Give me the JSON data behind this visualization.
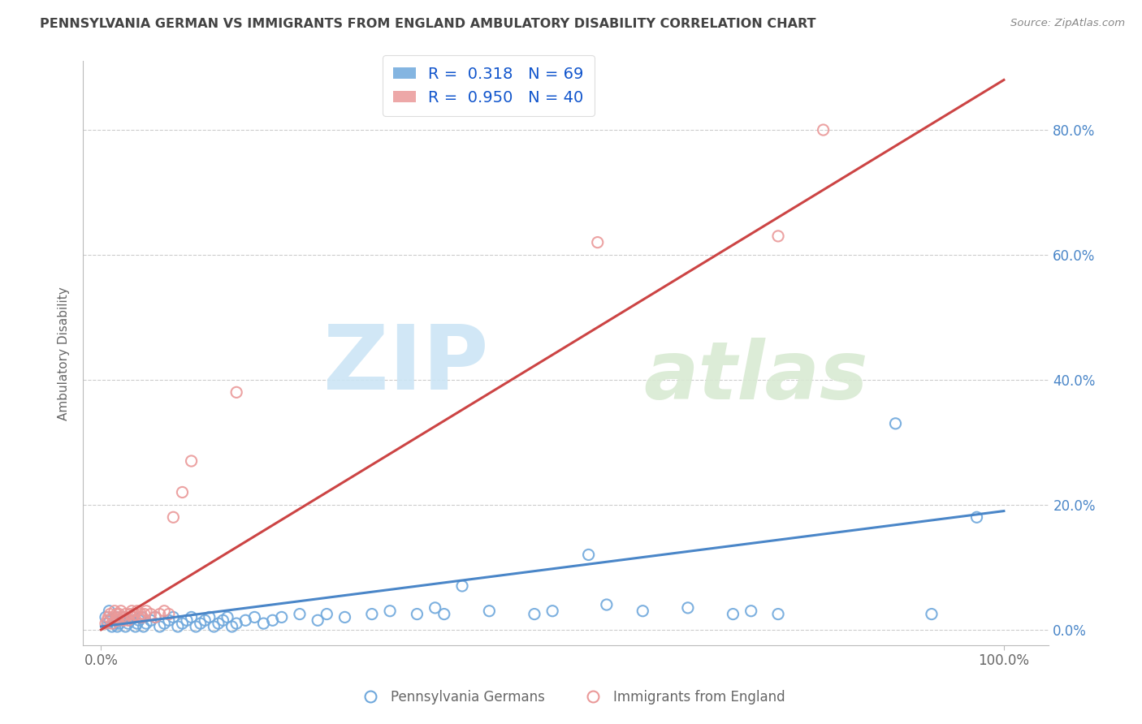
{
  "title": "PENNSYLVANIA GERMAN VS IMMIGRANTS FROM ENGLAND AMBULATORY DISABILITY CORRELATION CHART",
  "source": "Source: ZipAtlas.com",
  "ylabel": "Ambulatory Disability",
  "legend_label_blue": "Pennsylvania Germans",
  "legend_label_pink": "Immigrants from England",
  "R_blue": "0.318",
  "N_blue": "69",
  "R_pink": "0.950",
  "N_pink": "40",
  "blue_color": "#6fa8dc",
  "pink_color": "#ea9999",
  "blue_line_color": "#4a86c8",
  "pink_line_color": "#cc4444",
  "watermark_zip_color": "#cce5f5",
  "watermark_atlas_color": "#d9ead3",
  "background_color": "#ffffff",
  "grid_color": "#cccccc",
  "title_color": "#434343",
  "axis_label_color": "#666666",
  "right_tick_color": "#4a86c8",
  "legend_text_color": "#1155cc",
  "ytick_positions": [
    0.0,
    0.2,
    0.4,
    0.6,
    0.8
  ],
  "ytick_labels_right": [
    "0.0%",
    "20.0%",
    "40.0%",
    "60.0%",
    "80.0%"
  ],
  "blue_scatter": [
    [
      0.005,
      0.02
    ],
    [
      0.007,
      0.01
    ],
    [
      0.009,
      0.03
    ],
    [
      0.01,
      0.015
    ],
    [
      0.012,
      0.005
    ],
    [
      0.015,
      0.01
    ],
    [
      0.017,
      0.02
    ],
    [
      0.018,
      0.005
    ],
    [
      0.02,
      0.01
    ],
    [
      0.022,
      0.015
    ],
    [
      0.025,
      0.02
    ],
    [
      0.027,
      0.005
    ],
    [
      0.03,
      0.01
    ],
    [
      0.032,
      0.015
    ],
    [
      0.035,
      0.02
    ],
    [
      0.038,
      0.005
    ],
    [
      0.04,
      0.01
    ],
    [
      0.042,
      0.015
    ],
    [
      0.045,
      0.02
    ],
    [
      0.047,
      0.005
    ],
    [
      0.05,
      0.01
    ],
    [
      0.055,
      0.015
    ],
    [
      0.06,
      0.02
    ],
    [
      0.065,
      0.005
    ],
    [
      0.07,
      0.01
    ],
    [
      0.075,
      0.015
    ],
    [
      0.08,
      0.02
    ],
    [
      0.085,
      0.005
    ],
    [
      0.09,
      0.01
    ],
    [
      0.095,
      0.015
    ],
    [
      0.1,
      0.02
    ],
    [
      0.105,
      0.005
    ],
    [
      0.11,
      0.01
    ],
    [
      0.115,
      0.015
    ],
    [
      0.12,
      0.02
    ],
    [
      0.125,
      0.005
    ],
    [
      0.13,
      0.01
    ],
    [
      0.135,
      0.015
    ],
    [
      0.14,
      0.02
    ],
    [
      0.145,
      0.005
    ],
    [
      0.15,
      0.01
    ],
    [
      0.16,
      0.015
    ],
    [
      0.17,
      0.02
    ],
    [
      0.18,
      0.01
    ],
    [
      0.19,
      0.015
    ],
    [
      0.2,
      0.02
    ],
    [
      0.22,
      0.025
    ],
    [
      0.24,
      0.015
    ],
    [
      0.25,
      0.025
    ],
    [
      0.27,
      0.02
    ],
    [
      0.3,
      0.025
    ],
    [
      0.32,
      0.03
    ],
    [
      0.35,
      0.025
    ],
    [
      0.37,
      0.035
    ],
    [
      0.38,
      0.025
    ],
    [
      0.4,
      0.07
    ],
    [
      0.43,
      0.03
    ],
    [
      0.48,
      0.025
    ],
    [
      0.5,
      0.03
    ],
    [
      0.54,
      0.12
    ],
    [
      0.56,
      0.04
    ],
    [
      0.6,
      0.03
    ],
    [
      0.65,
      0.035
    ],
    [
      0.7,
      0.025
    ],
    [
      0.72,
      0.03
    ],
    [
      0.75,
      0.025
    ],
    [
      0.88,
      0.33
    ],
    [
      0.92,
      0.025
    ],
    [
      0.97,
      0.18
    ]
  ],
  "pink_scatter": [
    [
      0.005,
      0.01
    ],
    [
      0.007,
      0.015
    ],
    [
      0.008,
      0.02
    ],
    [
      0.01,
      0.025
    ],
    [
      0.012,
      0.01
    ],
    [
      0.013,
      0.02
    ],
    [
      0.015,
      0.03
    ],
    [
      0.016,
      0.015
    ],
    [
      0.017,
      0.025
    ],
    [
      0.018,
      0.02
    ],
    [
      0.019,
      0.015
    ],
    [
      0.02,
      0.025
    ],
    [
      0.022,
      0.03
    ],
    [
      0.023,
      0.02
    ],
    [
      0.025,
      0.015
    ],
    [
      0.027,
      0.025
    ],
    [
      0.028,
      0.02
    ],
    [
      0.03,
      0.015
    ],
    [
      0.032,
      0.025
    ],
    [
      0.034,
      0.03
    ],
    [
      0.035,
      0.02
    ],
    [
      0.037,
      0.025
    ],
    [
      0.04,
      0.03
    ],
    [
      0.042,
      0.02
    ],
    [
      0.044,
      0.025
    ],
    [
      0.046,
      0.02
    ],
    [
      0.048,
      0.025
    ],
    [
      0.05,
      0.03
    ],
    [
      0.055,
      0.025
    ],
    [
      0.06,
      0.02
    ],
    [
      0.065,
      0.025
    ],
    [
      0.07,
      0.03
    ],
    [
      0.075,
      0.025
    ],
    [
      0.08,
      0.18
    ],
    [
      0.09,
      0.22
    ],
    [
      0.1,
      0.27
    ],
    [
      0.15,
      0.38
    ],
    [
      0.55,
      0.62
    ],
    [
      0.75,
      0.63
    ],
    [
      0.8,
      0.8
    ]
  ],
  "blue_line_x": [
    0.0,
    1.0
  ],
  "blue_line_y": [
    0.005,
    0.19
  ],
  "pink_line_x": [
    0.0,
    1.0
  ],
  "pink_line_y": [
    0.0,
    0.88
  ],
  "xlim": [
    -0.02,
    1.05
  ],
  "ylim": [
    -0.025,
    0.91
  ]
}
